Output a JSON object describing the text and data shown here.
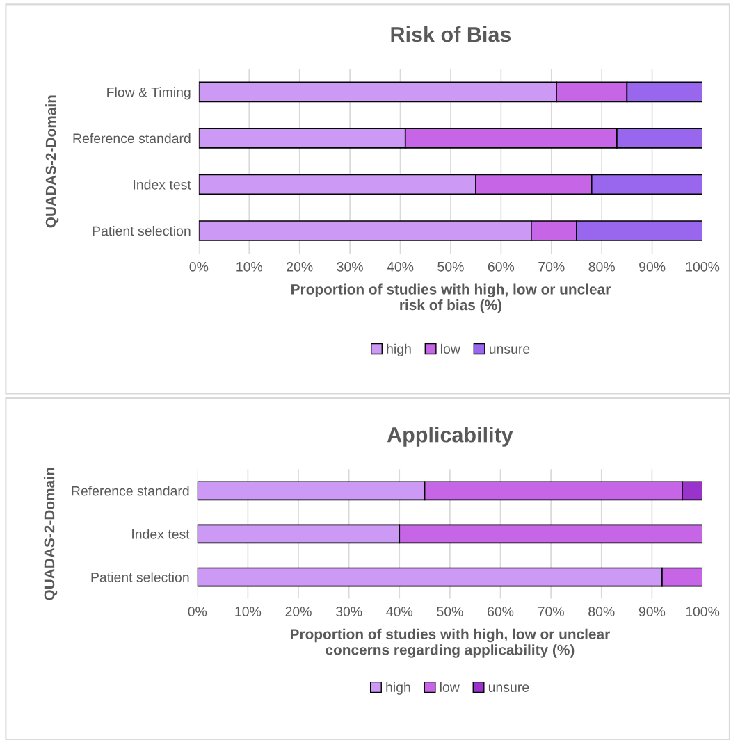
{
  "chart_data": [
    {
      "type": "bar",
      "orientation": "horizontal",
      "stacked": true,
      "title": "Risk of Bias",
      "ylabel": "QUADAS-2-Domain",
      "xlabel": "Proportion of studies with high, low or unclear\nrisk of bias (%)",
      "categories": [
        "Flow & Timing",
        "Reference standard",
        "Index test",
        "Patient selection"
      ],
      "series": [
        {
          "name": "high",
          "color": "#cc99f5",
          "values": [
            71,
            41,
            55,
            66
          ]
        },
        {
          "name": "low",
          "color": "#c665e6",
          "values": [
            14,
            42,
            23,
            9
          ]
        },
        {
          "name": "unsure",
          "color": "#9966ee",
          "values": [
            15,
            17,
            22,
            25
          ]
        }
      ],
      "xlim": [
        0,
        100
      ],
      "xticks": [
        {
          "value": 0,
          "label": "0%"
        },
        {
          "value": 10,
          "label": "10%"
        },
        {
          "value": 20,
          "label": "20%"
        },
        {
          "value": 30,
          "label": "30%"
        },
        {
          "value": 40,
          "label": "40%"
        },
        {
          "value": 50,
          "label": "50%"
        },
        {
          "value": 60,
          "label": "60%"
        },
        {
          "value": 70,
          "label": "70%"
        },
        {
          "value": 80,
          "label": "80%"
        },
        {
          "value": 90,
          "label": "90%"
        },
        {
          "value": 100,
          "label": "100%"
        }
      ],
      "grid": "x",
      "legend": "bottom"
    },
    {
      "type": "bar",
      "orientation": "horizontal",
      "stacked": true,
      "title": "Applicability",
      "ylabel": "QUADAS-2-Domain",
      "xlabel": "Proportion of studies with high, low or unclear\nconcerns regarding applicability (%)",
      "categories": [
        "Reference standard",
        "Index test",
        "Patient selection"
      ],
      "series": [
        {
          "name": "high",
          "color": "#cc99f5",
          "values": [
            45,
            40,
            92
          ]
        },
        {
          "name": "low",
          "color": "#c665e6",
          "values": [
            51,
            60,
            8
          ]
        },
        {
          "name": "unsure",
          "color": "#9933cc",
          "values": [
            4,
            null,
            null
          ]
        }
      ],
      "xlim": [
        0,
        100
      ],
      "xticks": [
        {
          "value": 0,
          "label": "0%"
        },
        {
          "value": 10,
          "label": "10%"
        },
        {
          "value": 20,
          "label": "20%"
        },
        {
          "value": 30,
          "label": "30%"
        },
        {
          "value": 40,
          "label": "40%"
        },
        {
          "value": 50,
          "label": "50%"
        },
        {
          "value": 60,
          "label": "60%"
        },
        {
          "value": 70,
          "label": "70%"
        },
        {
          "value": 80,
          "label": "80%"
        },
        {
          "value": 90,
          "label": "90%"
        },
        {
          "value": 100,
          "label": "100%"
        }
      ],
      "grid": "x",
      "legend": "bottom"
    }
  ]
}
